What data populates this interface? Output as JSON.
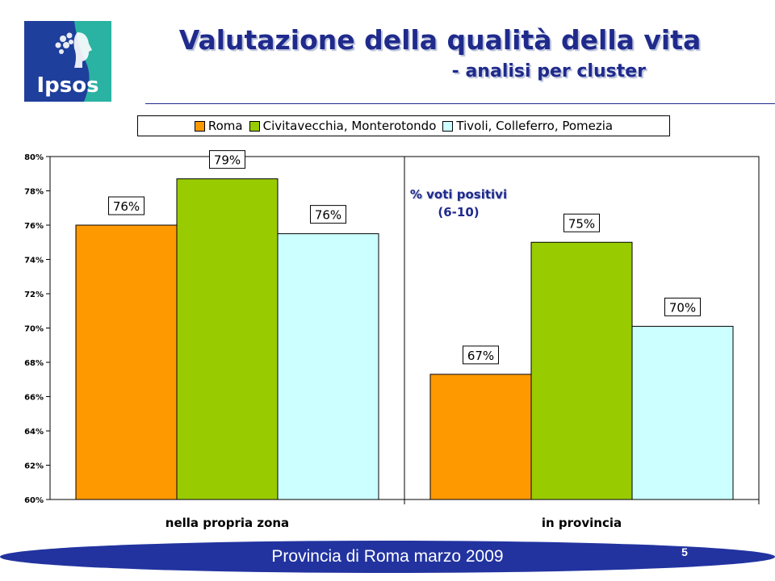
{
  "logo": {
    "text": "Ipsos",
    "colors": {
      "left": "#1f3f9c",
      "right": "#2ab3a3"
    }
  },
  "header": {
    "title": "Valutazione della qualità della vita",
    "subtitle": "- analisi per cluster"
  },
  "footer": {
    "text": "Provincia di Roma marzo 2009",
    "page": "5",
    "band_color": "#2233a0"
  },
  "chart_data": {
    "type": "bar",
    "categories": [
      "nella propria zona",
      "in provincia"
    ],
    "series": [
      {
        "name": "Roma",
        "color": "#ff9900",
        "values": [
          76.0,
          67.3
        ],
        "labels": [
          "76%",
          "67%"
        ]
      },
      {
        "name": "Civitavecchia, Monterotondo",
        "color": "#99cc00",
        "values": [
          78.7,
          75.0
        ],
        "labels": [
          "79%",
          "75%"
        ]
      },
      {
        "name": "Tivoli, Colleferro, Pomezia",
        "color": "#ccffff",
        "values": [
          75.5,
          70.1
        ],
        "labels": [
          "76%",
          "70%"
        ]
      }
    ],
    "yticks": [
      "60%",
      "62%",
      "64%",
      "66%",
      "68%",
      "70%",
      "72%",
      "74%",
      "76%",
      "78%",
      "80%"
    ],
    "ylim": [
      60,
      80
    ],
    "annotation": {
      "line1": "% voti positivi",
      "line2": "(6-10)"
    },
    "legend_position": "top",
    "grid": false
  }
}
